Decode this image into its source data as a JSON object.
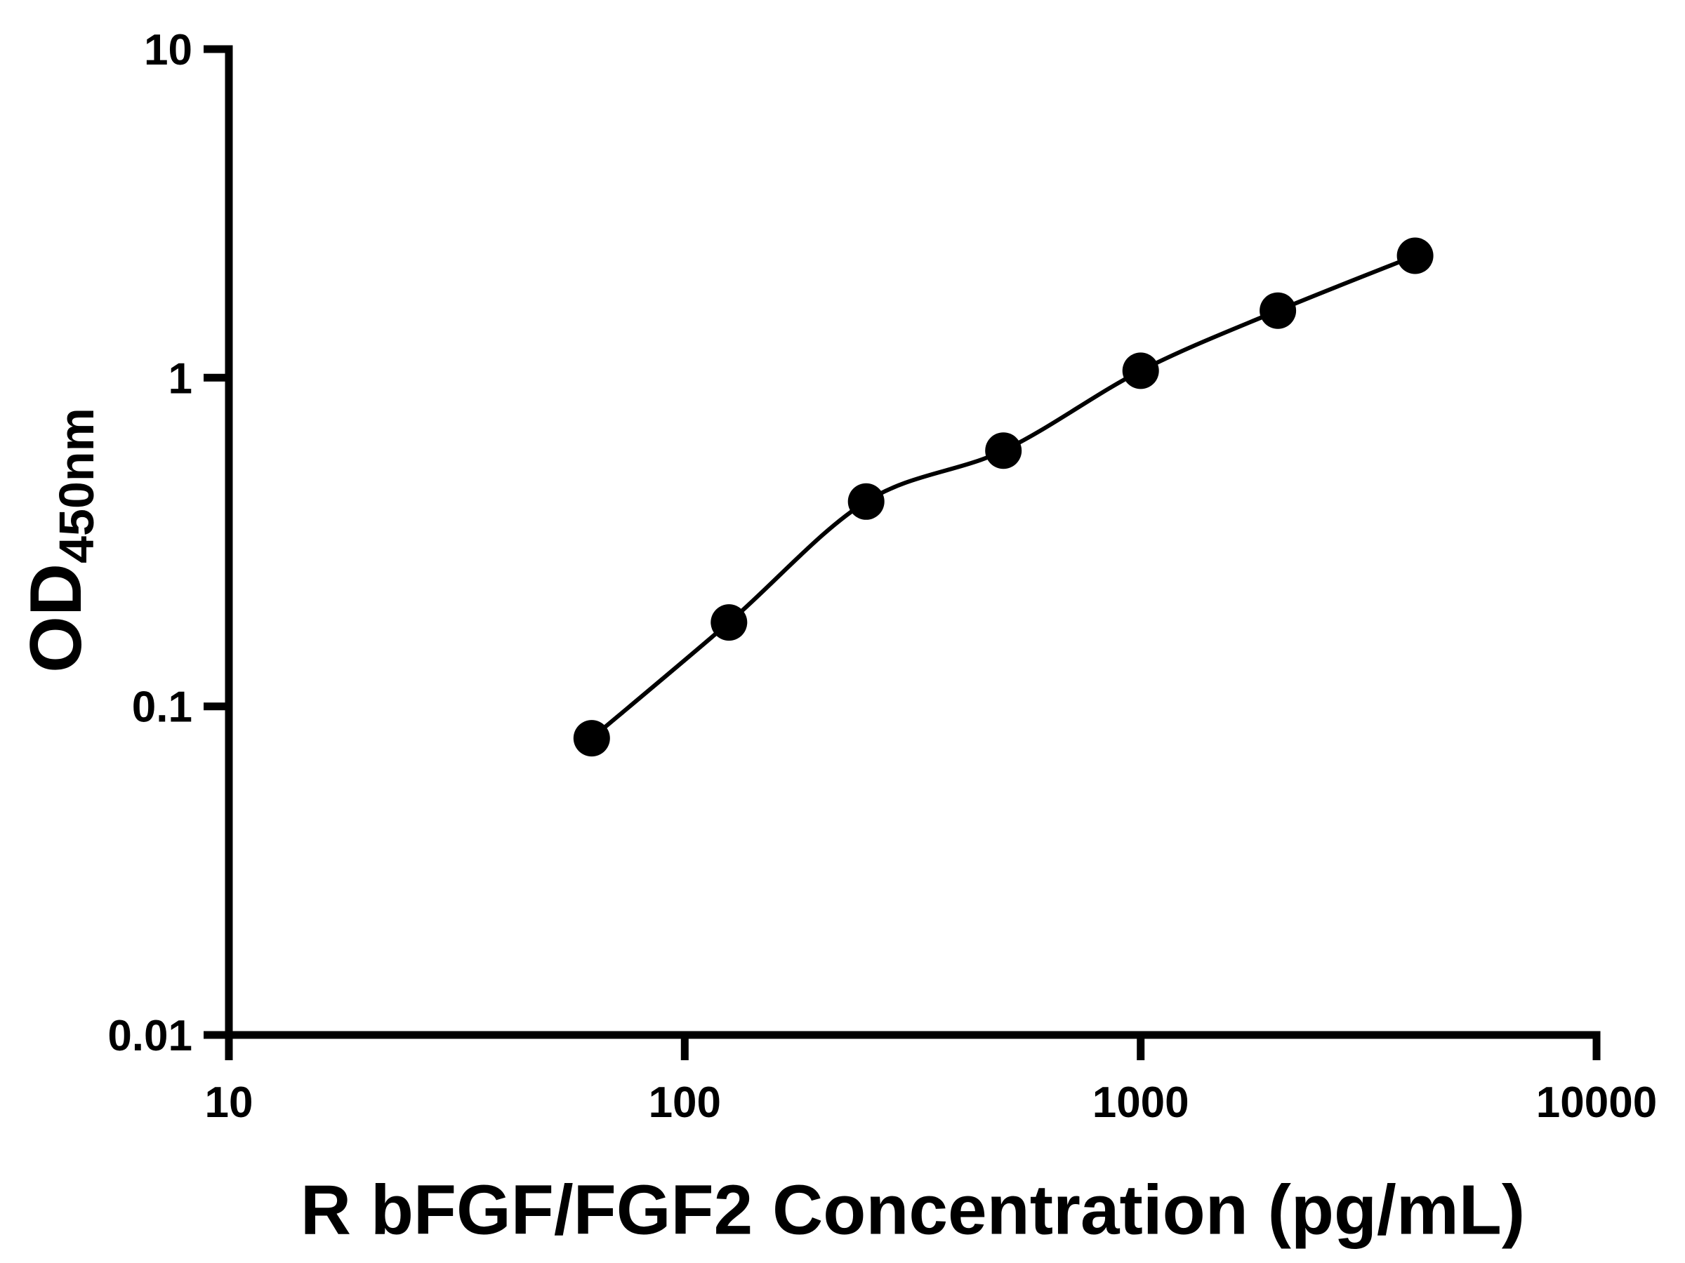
{
  "figure": {
    "background": "#ffffff"
  },
  "chart_data": {
    "type": "scatter",
    "subtype": "standard-curve-with-fit-line",
    "title": "",
    "xlabel": "R bFGF/FGF2 Concentration (pg/mL)",
    "ylabel_main": "OD",
    "ylabel_sub": "450nm",
    "x_scale": "log",
    "y_scale": "log",
    "xlim": [
      10,
      10000
    ],
    "ylim": [
      0.01,
      10
    ],
    "x_ticks": [
      10,
      100,
      1000,
      10000
    ],
    "x_tick_labels": [
      "10",
      "100",
      "1000",
      "10000"
    ],
    "y_ticks": [
      0.01,
      0.1,
      1,
      10
    ],
    "y_tick_labels": [
      "0.01",
      "0.1",
      "1",
      "10"
    ],
    "grid": false,
    "legend": false,
    "series": [
      {
        "name": "standard-curve",
        "marker": "circle",
        "marker_color": "#000000",
        "line_color": "#000000",
        "points": [
          {
            "x": 62.5,
            "y": 0.08
          },
          {
            "x": 125,
            "y": 0.18
          },
          {
            "x": 250,
            "y": 0.42
          },
          {
            "x": 500,
            "y": 0.6
          },
          {
            "x": 1000,
            "y": 1.05
          },
          {
            "x": 2000,
            "y": 1.6
          },
          {
            "x": 4000,
            "y": 2.35
          }
        ]
      }
    ]
  },
  "colors": {
    "axis": "#000000",
    "text": "#000000",
    "marker": "#000000",
    "curve": "#000000",
    "background": "#ffffff"
  }
}
